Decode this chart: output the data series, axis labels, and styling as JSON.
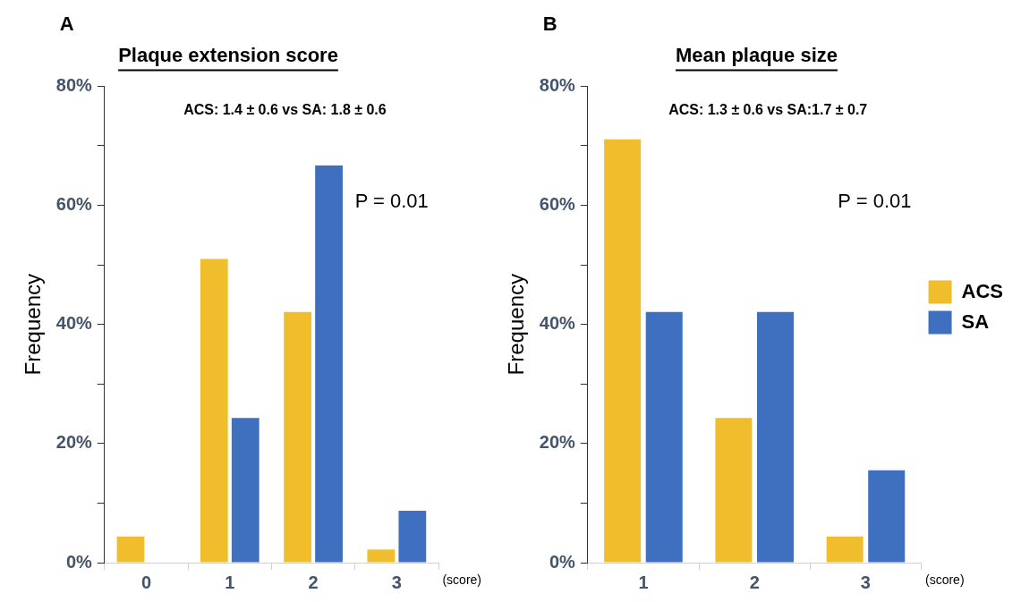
{
  "chart_data": [
    {
      "type": "bar",
      "title": "Plaque extension score",
      "xlabel": "(score)",
      "ylabel": "Frequency",
      "categories": [
        "0",
        "1",
        "2",
        "3"
      ],
      "series": [
        {
          "color": "#f0be2c",
          "values": [
            4.4,
            51.0,
            42.1,
            2.2
          ]
        },
        {
          "color": "#3f70c0",
          "values": [
            0,
            24.3,
            66.7,
            8.7
          ]
        }
      ],
      "ylim": [
        0,
        80
      ],
      "yticks": [
        {
          "value": 0,
          "label": "0%"
        },
        {
          "value": 10,
          "label": null
        },
        {
          "value": 20,
          "label": "20%"
        },
        {
          "value": 30,
          "label": null
        },
        {
          "value": 40,
          "label": "40%"
        },
        {
          "value": 50,
          "label": null
        },
        {
          "value": 60,
          "label": "60%"
        },
        {
          "value": 70,
          "label": null
        },
        {
          "value": 80,
          "label": "80%"
        }
      ],
      "grid": false,
      "legend": false,
      "annotations": [
        "A",
        "ACS: 1.4 ± 0.6 vs SA: 1.8 ± 0.6",
        "P = 0.01"
      ]
    },
    {
      "type": "bar",
      "title": "Mean plaque size",
      "xlabel": "(score)",
      "ylabel": "Frequency",
      "categories": [
        "1",
        "2",
        "3"
      ],
      "series": [
        {
          "name": "ACS",
          "color": "#f0be2c",
          "values": [
            71.1,
            24.3,
            4.4
          ]
        },
        {
          "name": "SA",
          "color": "#3f70c0",
          "values": [
            42.1,
            42.1,
            15.5
          ]
        }
      ],
      "ylim": [
        0,
        80
      ],
      "yticks": [
        {
          "value": 0,
          "label": "0%"
        },
        {
          "value": 10,
          "label": null
        },
        {
          "value": 20,
          "label": "20%"
        },
        {
          "value": 30,
          "label": null
        },
        {
          "value": 40,
          "label": "40%"
        },
        {
          "value": 50,
          "label": null
        },
        {
          "value": 60,
          "label": "60%"
        },
        {
          "value": 70,
          "label": null
        },
        {
          "value": 80,
          "label": "80%"
        }
      ],
      "grid": false,
      "legend": "right",
      "annotations": [
        "B",
        "ACS: 1.3 ± 0.6 vs SA:1.7 ± 0.7",
        "P = 0.01"
      ]
    }
  ]
}
